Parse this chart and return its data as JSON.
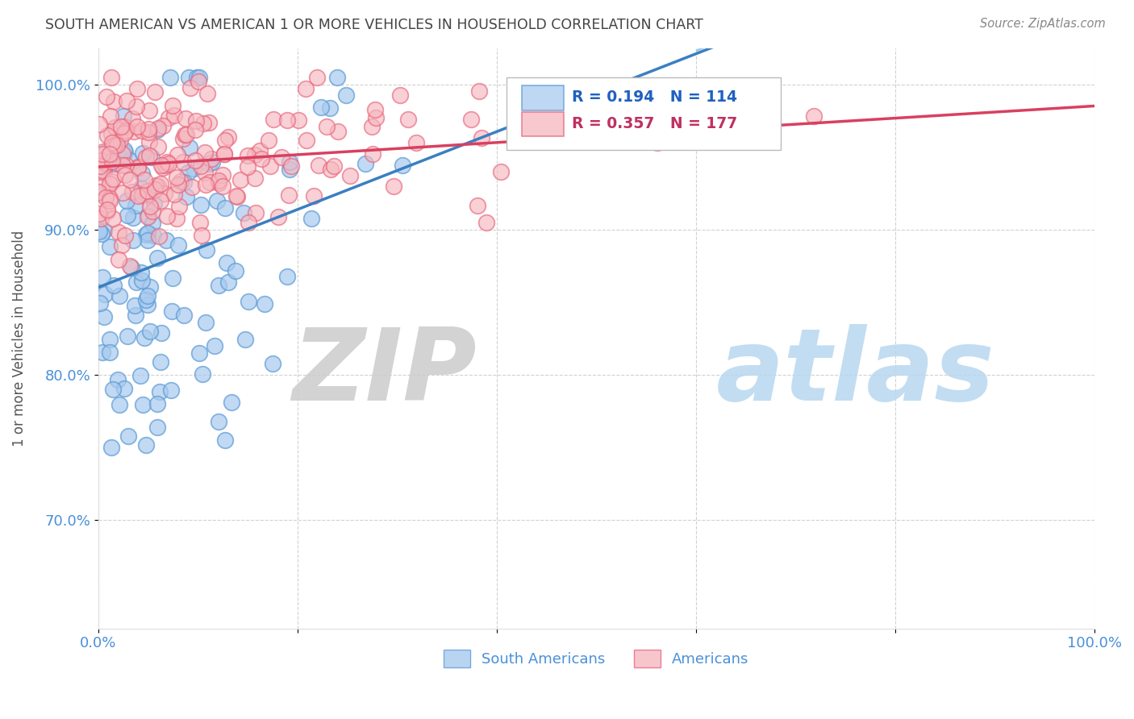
{
  "title": "SOUTH AMERICAN VS AMERICAN 1 OR MORE VEHICLES IN HOUSEHOLD CORRELATION CHART",
  "source": "Source: ZipAtlas.com",
  "ylabel": "1 or more Vehicles in Household",
  "xlim": [
    0.0,
    1.0
  ],
  "ylim": [
    0.625,
    1.025
  ],
  "ytick_vals": [
    0.7,
    0.8,
    0.9,
    1.0
  ],
  "ytick_labels": [
    "70.0%",
    "80.0%",
    "90.0%",
    "100.0%"
  ],
  "xtick_vals": [
    0.0,
    0.2,
    0.4,
    0.6,
    0.8,
    1.0
  ],
  "xtick_labels": [
    "0.0%",
    "",
    "",
    "",
    "",
    "100.0%"
  ],
  "watermark_zip": "ZIP",
  "watermark_atlas": "atlas",
  "blue_fill": "#a8caee",
  "blue_edge": "#5b9bd5",
  "pink_fill": "#f5b8c0",
  "pink_edge": "#e8647a",
  "blue_line_color": "#3a7fc1",
  "pink_line_color": "#d94060",
  "dashed_line_color": "#a0c8e8",
  "axis_label_color": "#4a90d9",
  "title_color": "#444444",
  "source_color": "#888888",
  "grid_color": "#cccccc",
  "background_color": "#ffffff",
  "R_blue": 0.194,
  "N_blue": 114,
  "R_pink": 0.357,
  "N_pink": 177,
  "legend_label_blue": "R = 0.194   N = 114",
  "legend_label_pink": "R = 0.357   N = 177",
  "legend_text_color_blue": "#2060c0",
  "legend_text_color_pink": "#c03060",
  "bottom_legend_color": "#4a90d9"
}
